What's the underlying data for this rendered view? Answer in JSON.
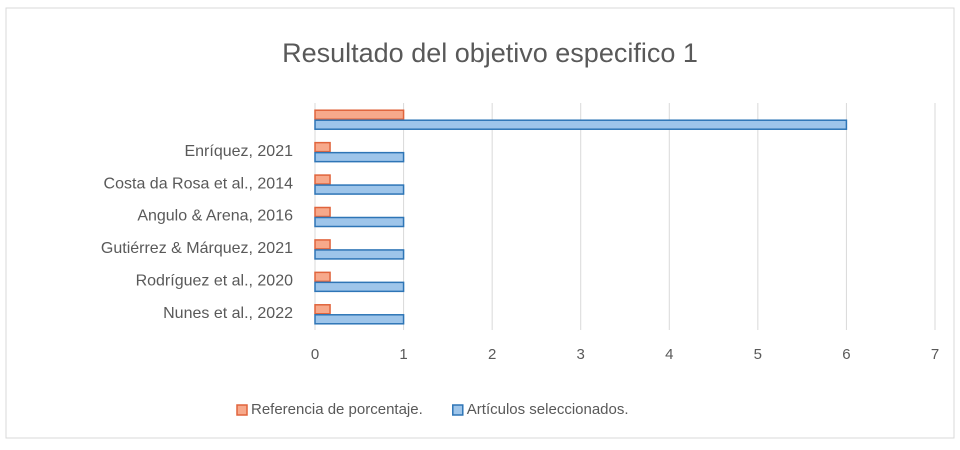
{
  "chart_data": {
    "type": "hbar",
    "title": "Resultado del objetivo especifico 1",
    "categories": [
      null,
      "Enríquez, 2021",
      "Costa da Rosa et al., 2014",
      "Angulo & Arena, 2016",
      "Gutiérrez & Márquez, 2021",
      "Rodríguez et al., 2020",
      "Nunes et al., 2022"
    ],
    "series": [
      {
        "name": "Referencia de porcentaje.",
        "color": "#f7a98b",
        "values": [
          1,
          0.17,
          0.17,
          0.17,
          0.17,
          0.17,
          0.17
        ]
      },
      {
        "name": "Artículos seleccionados.",
        "color": "#9ec5ea",
        "values": [
          6,
          1,
          1,
          1,
          1,
          1,
          1
        ]
      }
    ],
    "xlim": [
      0,
      7
    ],
    "xticks": [
      0,
      1,
      2,
      3,
      4,
      5,
      6,
      7
    ],
    "grid": true,
    "legend": "bottom"
  }
}
